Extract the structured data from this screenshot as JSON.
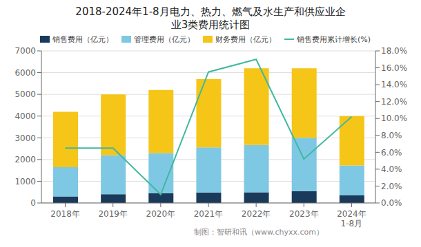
{
  "chart_data": {
    "type": "bar",
    "title": "2018-2024年1-8月电力、热力、燃气及水生产和供应业企\n业3类费用统计图",
    "categories": [
      "2018年",
      "2019年",
      "2020年",
      "2021年",
      "2022年",
      "2023年",
      "2024年\n1-8月"
    ],
    "series": [
      {
        "name": "销售费用（亿元）",
        "color": "#1a3a5c",
        "values": [
          300,
          400,
          450,
          480,
          490,
          550,
          350
        ]
      },
      {
        "name": "管理费用（亿元）",
        "color": "#7ec8e3",
        "values": [
          1350,
          1800,
          1850,
          2080,
          2180,
          2450,
          1380
        ]
      },
      {
        "name": "财务费用（亿元）",
        "color": "#f5c518",
        "values": [
          2550,
          2800,
          2900,
          3140,
          3530,
          3200,
          2270
        ]
      },
      {
        "name": "销售费用累计增长(%)",
        "type": "line",
        "axis": "y2",
        "color": "#40b8a0",
        "values": [
          6.5,
          6.5,
          1.0,
          15.5,
          17.0,
          5.2,
          10.2
        ]
      }
    ],
    "stacked": true,
    "ylim": [
      0,
      7000
    ],
    "yticks": [
      0,
      1000,
      2000,
      3000,
      4000,
      5000,
      6000,
      7000
    ],
    "y2lim": [
      0,
      18
    ],
    "y2ticks": [
      {
        "value": 0,
        "label": "0.0%"
      },
      {
        "value": 2,
        "label": "2.0%"
      },
      {
        "value": 4,
        "label": "4.0%"
      },
      {
        "value": 6,
        "label": "6.0%"
      },
      {
        "value": 8,
        "label": "8.0%"
      },
      {
        "value": 10,
        "label": "10.0%"
      },
      {
        "value": 12,
        "label": "12.0%"
      },
      {
        "value": 14,
        "label": "14.0%"
      },
      {
        "value": 16,
        "label": "16.0%"
      },
      {
        "value": 18,
        "label": "18.0%"
      }
    ],
    "grid": true,
    "legend": "upper left",
    "annotations": [
      "制图：智研和讯（www.chyxx.com）"
    ]
  }
}
